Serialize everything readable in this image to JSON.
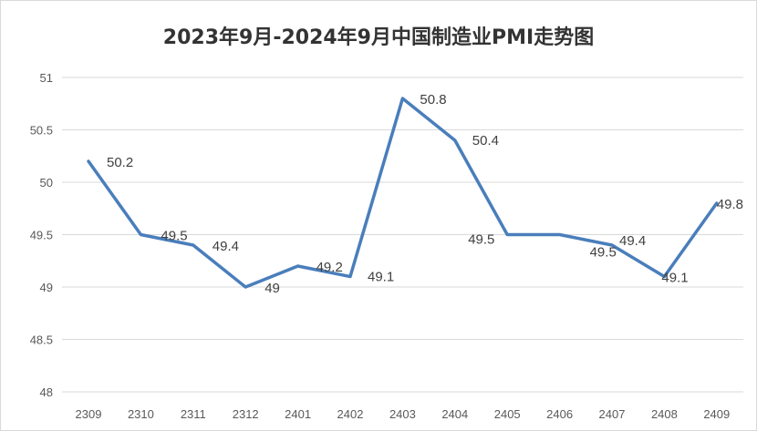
{
  "chart_data": {
    "type": "line",
    "title": "2023年9月-2024年9月中国制造业PMI走势图",
    "xlabel": "",
    "ylabel": "",
    "categories": [
      "2309",
      "2310",
      "2311",
      "2312",
      "2401",
      "2402",
      "2403",
      "2404",
      "2405",
      "2406",
      "2407",
      "2408",
      "2409"
    ],
    "series": [
      {
        "name": "PMI",
        "values": [
          50.2,
          49.5,
          49.4,
          49,
          49.2,
          49.1,
          50.8,
          50.4,
          49.5,
          49.5,
          49.4,
          49.1,
          49.8
        ],
        "color": "#4a7ebb"
      }
    ],
    "data_labels": [
      "50.2",
      "49.5",
      "49.4",
      "49",
      "49.2",
      "49.1",
      "50.8",
      "50.4",
      "49.5",
      "49.5",
      "49.4",
      "49.1",
      "49.8"
    ],
    "ylim": [
      48,
      51
    ],
    "yticks": [
      "48",
      "48.5",
      "49",
      "49.5",
      "50",
      "50.5",
      "51"
    ],
    "grid": true,
    "legend": "none"
  }
}
